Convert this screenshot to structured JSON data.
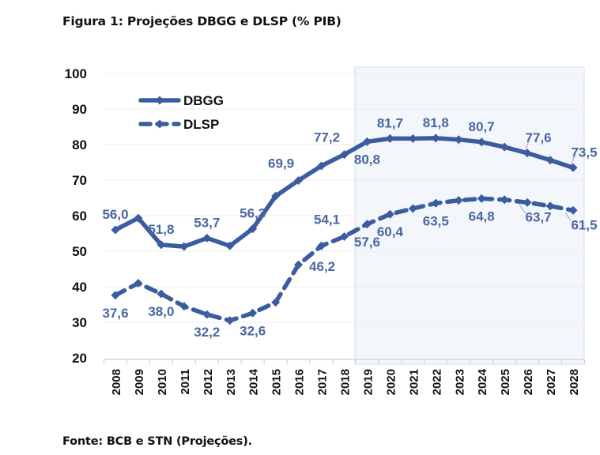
{
  "figure": {
    "title": "Figura 1: Projeções DBGG e DLSP (% PIB)",
    "source": "Fonte: BCB e STN (Projeções)."
  },
  "colors": {
    "series": "#3b5c9e",
    "label": "#4a67a0",
    "projection_shade": "#f3f6fb",
    "projection_border": "#dbe3f0",
    "grid": "#eeeeee"
  },
  "chart_data": {
    "type": "line",
    "title": "Figura 1: Projeções DBGG e DLSP (% PIB)",
    "xlabel": "",
    "ylabel": "",
    "ylim": [
      20,
      100
    ],
    "yticks": [
      "20",
      "30",
      "40",
      "50",
      "60",
      "70",
      "80",
      "90",
      "100"
    ],
    "ytick_values": [
      20,
      30,
      40,
      50,
      60,
      70,
      80,
      90,
      100
    ],
    "grid": true,
    "legend_position": "top-left",
    "projection_region": {
      "from": "2018",
      "to": "2028",
      "label": "shaded projection period"
    },
    "categories": [
      "2008",
      "2009",
      "2010",
      "2011",
      "2012",
      "2013",
      "2014",
      "2015",
      "2016",
      "2017",
      "2018",
      "2019",
      "2020",
      "2021",
      "2022",
      "2023",
      "2024",
      "2025",
      "2026",
      "2027",
      "2028"
    ],
    "series": [
      {
        "name": "DBGG",
        "style": "solid",
        "values": [
          56.0,
          59.3,
          51.8,
          51.3,
          53.7,
          51.5,
          56.3,
          65.5,
          69.9,
          74.0,
          77.2,
          80.8,
          81.7,
          81.7,
          81.8,
          81.4,
          80.7,
          79.3,
          77.6,
          75.6,
          73.5
        ],
        "data_labels": [
          {
            "year": "2008",
            "text": "56,0",
            "pos": "above"
          },
          {
            "year": "2010",
            "text": "51,8",
            "pos": "above"
          },
          {
            "year": "2012",
            "text": "53,7",
            "pos": "above"
          },
          {
            "year": "2014",
            "text": "56,3",
            "pos": "above"
          },
          {
            "year": "2016",
            "text": "69,9",
            "pos": "above-left"
          },
          {
            "year": "2018",
            "text": "77,2",
            "pos": "above-left"
          },
          {
            "year": "2019",
            "text": "80,8",
            "pos": "below"
          },
          {
            "year": "2020",
            "text": "81,7",
            "pos": "above"
          },
          {
            "year": "2022",
            "text": "81,8",
            "pos": "above"
          },
          {
            "year": "2024",
            "text": "80,7",
            "pos": "above"
          },
          {
            "year": "2026",
            "text": "77,6",
            "pos": "above-right"
          },
          {
            "year": "2028",
            "text": "73,5",
            "pos": "above-right"
          }
        ]
      },
      {
        "name": "DLSP",
        "style": "dashed",
        "values": [
          37.6,
          41.0,
          38.0,
          34.5,
          32.2,
          30.5,
          32.6,
          35.6,
          46.2,
          51.5,
          54.1,
          57.6,
          60.4,
          62.0,
          63.5,
          64.3,
          64.8,
          64.5,
          63.7,
          62.7,
          61.5
        ],
        "data_labels": [
          {
            "year": "2008",
            "text": "37,6",
            "pos": "below"
          },
          {
            "year": "2010",
            "text": "38,0",
            "pos": "below"
          },
          {
            "year": "2012",
            "text": "32,2",
            "pos": "below"
          },
          {
            "year": "2014",
            "text": "32,6",
            "pos": "below"
          },
          {
            "year": "2016",
            "text": "46,2",
            "pos": "right"
          },
          {
            "year": "2018",
            "text": "54,1",
            "pos": "above-left"
          },
          {
            "year": "2019",
            "text": "57,6",
            "pos": "below"
          },
          {
            "year": "2020",
            "text": "60,4",
            "pos": "below"
          },
          {
            "year": "2022",
            "text": "63,5",
            "pos": "below"
          },
          {
            "year": "2024",
            "text": "64,8",
            "pos": "below"
          },
          {
            "year": "2026",
            "text": "63,7",
            "pos": "below-right"
          },
          {
            "year": "2028",
            "text": "61,5",
            "pos": "below-right"
          }
        ]
      }
    ]
  }
}
